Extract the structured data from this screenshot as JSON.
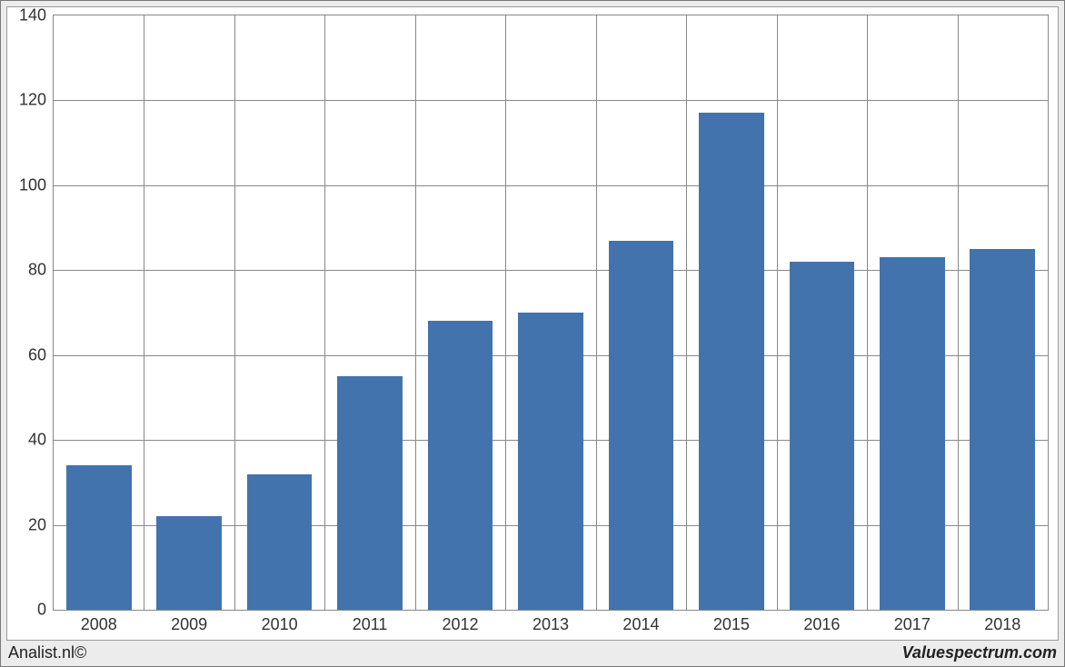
{
  "chart": {
    "type": "bar",
    "categories": [
      "2008",
      "2009",
      "2010",
      "2011",
      "2012",
      "2013",
      "2014",
      "2015",
      "2016",
      "2017",
      "2018"
    ],
    "values": [
      34,
      22,
      32,
      55,
      68,
      70,
      87,
      117,
      82,
      83,
      85
    ],
    "bar_color": "#4373ac",
    "ylim": [
      0,
      140
    ],
    "ytick_step": 20,
    "yticks": [
      0,
      20,
      40,
      60,
      80,
      100,
      120,
      140
    ],
    "grid_color": "#888888",
    "plot_bg": "#ffffff",
    "outer_bg": "#ececec",
    "border_color": "#888888",
    "tick_font_size": 18,
    "tick_color": "#323232",
    "bar_width_ratio": 0.72,
    "footer_left": "Analist.nl©",
    "footer_right": "Valuespectrum.com"
  }
}
